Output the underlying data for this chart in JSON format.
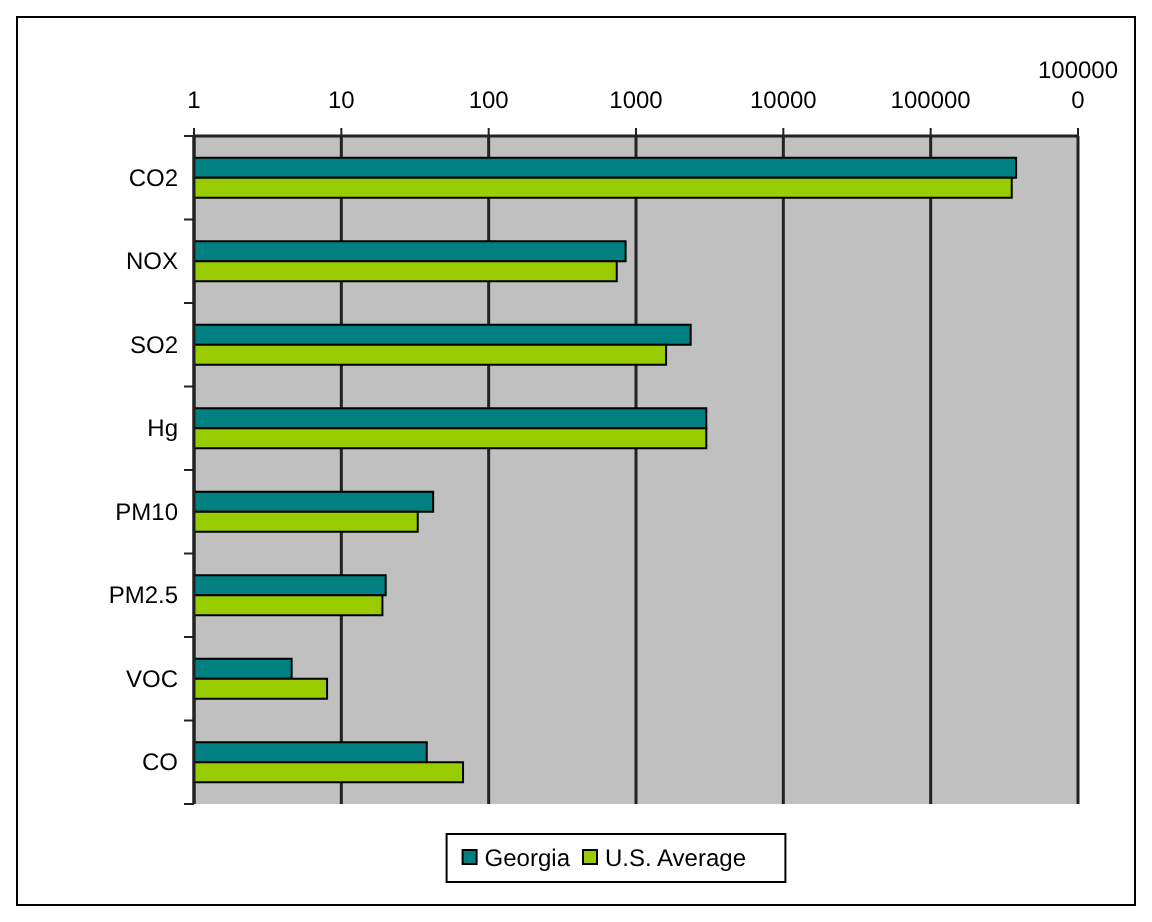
{
  "chart_data": {
    "type": "bar",
    "orientation": "horizontal",
    "log": "x",
    "categories": [
      "CO2",
      "NOX",
      "SO2",
      "Hg",
      "PM10",
      "PM2.5",
      "VOC",
      "CO"
    ],
    "series": [
      {
        "name": "Georgia",
        "color": "#008080",
        "values": [
          380000,
          850,
          2350,
          3000,
          42,
          20,
          4.6,
          38
        ]
      },
      {
        "name": "U.S. Average",
        "color": "#99cc00",
        "values": [
          355000,
          740,
          1600,
          3000,
          33,
          19,
          8,
          67
        ]
      }
    ],
    "xlim": [
      1,
      1000000
    ],
    "xticks": [
      1,
      10,
      100,
      1000,
      10000,
      100000,
      1000000
    ],
    "grid": "x",
    "legend": "bottom"
  }
}
